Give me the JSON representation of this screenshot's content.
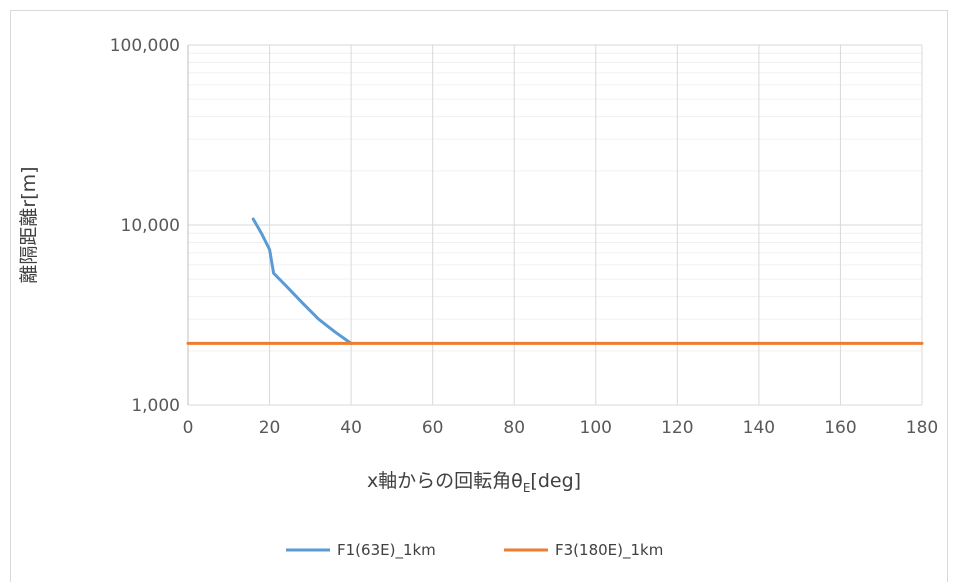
{
  "chart_data": {
    "type": "line",
    "title": "",
    "xlabel": "x軸からの回転角θ",
    "xlabel_subscript": "E",
    "xlabel_suffix": "[deg]",
    "ylabel": "離隔距離r[m]",
    "xlim": [
      0,
      180
    ],
    "ylim": [
      1000,
      100000
    ],
    "yscale": "log",
    "x_ticks": [
      0,
      20,
      40,
      60,
      80,
      100,
      120,
      140,
      160,
      180
    ],
    "x_tick_labels": [
      "0",
      "20",
      "40",
      "60",
      "80",
      "100",
      "120",
      "140",
      "160",
      "180"
    ],
    "y_ticks": [
      1000,
      10000,
      100000
    ],
    "y_tick_labels": [
      "1,000",
      "10,000",
      "100,000"
    ],
    "grid": true,
    "legend_position": "bottom",
    "series": [
      {
        "name": "F1(63E)_1km",
        "color": "#5b9bd5",
        "x": [
          16,
          18,
          20,
          21,
          24,
          28,
          32,
          36,
          40
        ],
        "y": [
          10800,
          9000,
          7300,
          5400,
          4600,
          3700,
          3000,
          2550,
          2200
        ]
      },
      {
        "name": "F3(180E)_1km",
        "color": "#ed7d31",
        "x": [
          0,
          180
        ],
        "y": [
          2200,
          2200
        ]
      }
    ]
  }
}
